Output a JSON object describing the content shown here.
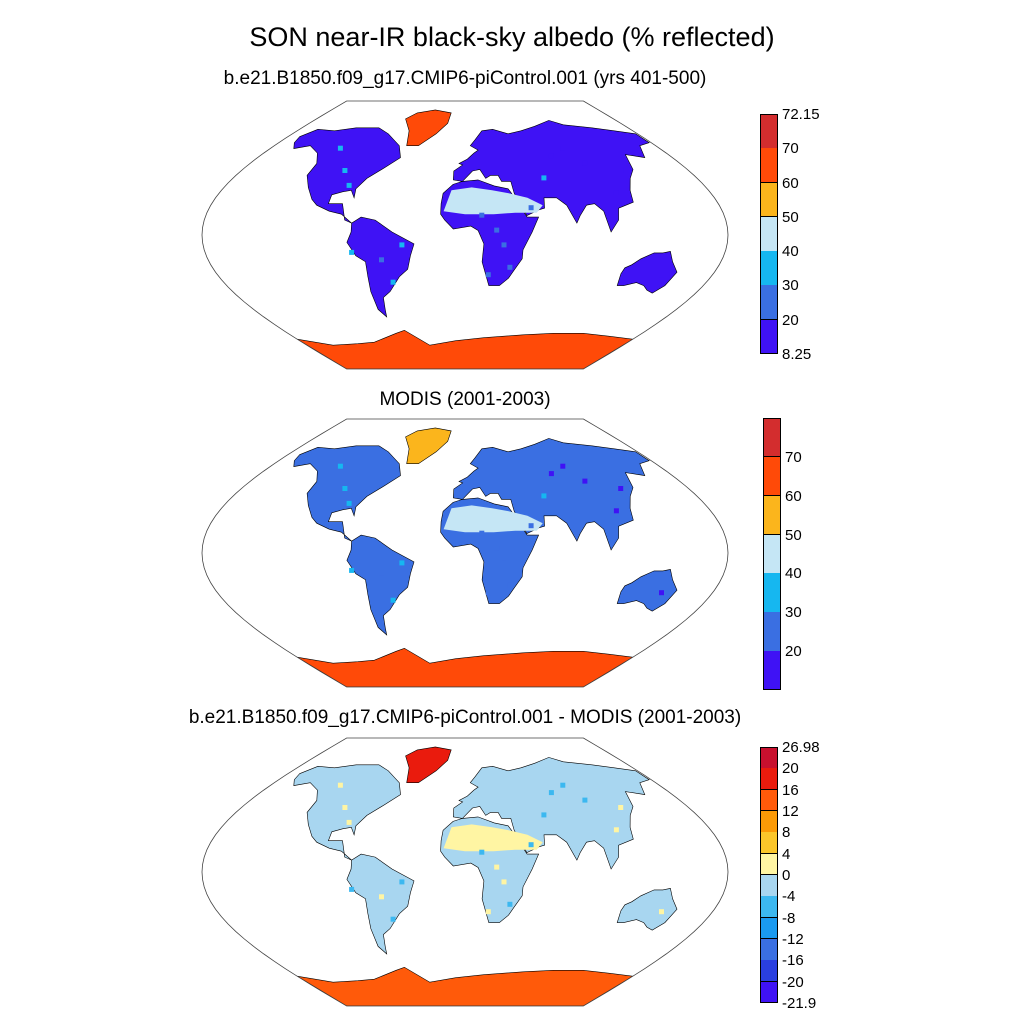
{
  "figure": {
    "title": "SON near-IR black-sky albedo (% reflected)"
  },
  "panels": [
    {
      "id": "model",
      "title": "b.e21.B1850.f09_g17.CMIP6-piControl.001 (yrs 401-500)",
      "colorbar": {
        "colors": [
          "#3f12f5",
          "#3a6fe2",
          "#16b7f0",
          "#c5e6f5",
          "#fbb51c",
          "#ff4a08",
          "#d32d2e"
        ],
        "labels": [
          "8.25",
          "20",
          "30",
          "40",
          "50",
          "60",
          "70",
          "72.15"
        ]
      },
      "land_color": "#3f12f5"
    },
    {
      "id": "obs",
      "title": "MODIS (2001-2003)",
      "colorbar": {
        "colors": [
          "#3f12f5",
          "#3a6fe2",
          "#16b7f0",
          "#c5e6f5",
          "#fbb51c",
          "#ff4a08",
          "#d32d2e"
        ],
        "labels": [
          "",
          "20",
          "30",
          "40",
          "50",
          "60",
          "70",
          ""
        ]
      },
      "land_color": "#3a6fe2"
    },
    {
      "id": "diff",
      "title": "b.e21.B1850.f09_g17.CMIP6-piControl.001 - MODIS (2001-2003)",
      "colorbar": {
        "colors": [
          "#3f12f5",
          "#2a3fe0",
          "#3a6fe2",
          "#1a9af0",
          "#3cb8f0",
          "#a8d6f0",
          "#fff5a3",
          "#fbc62a",
          "#fb9a06",
          "#ff5a0a",
          "#ea1b0d",
          "#c8102e"
        ],
        "labels": [
          "-21.9",
          "-20",
          "-16",
          "-12",
          "-8",
          "-4",
          "0",
          "4",
          "8",
          "12",
          "16",
          "20",
          "26.98"
        ]
      },
      "land_color": "#a8d6f0"
    }
  ],
  "colors": {
    "coast": "#000000",
    "frame": "#444444"
  }
}
